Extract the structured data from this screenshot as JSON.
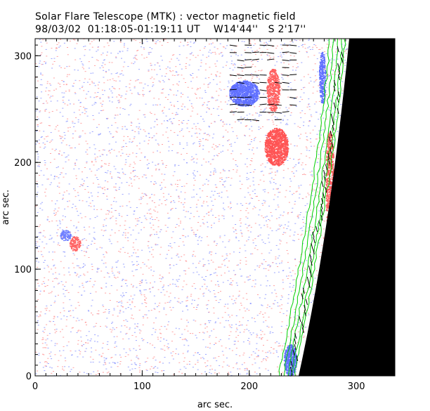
{
  "header": {
    "title": "Solar Flare Telescope (MTK) : vector magnetic field",
    "date": "98/03/02",
    "time_range": "01:18:05-01:19:11 UT",
    "position_w": "W14'44''",
    "position_s": "S 2'17''"
  },
  "chart_data": {
    "type": "heatmap",
    "title": "Solar Flare Telescope (MTK) : vector magnetic field",
    "xlabel": "arc sec.",
    "ylabel": "arc sec.",
    "xlim": [
      0,
      336
    ],
    "ylim": [
      0,
      316
    ],
    "xticks": [
      "0",
      "100",
      "200",
      "300"
    ],
    "yticks": [
      "0",
      "100",
      "200",
      "300"
    ],
    "colors": {
      "positive": "#ff6060",
      "negative": "#6070ff",
      "contour": "#00e000",
      "limb": "#000000",
      "vector": "#000000"
    },
    "features": [
      {
        "polarity": "negative",
        "x": 195,
        "y": 265
      },
      {
        "polarity": "positive",
        "x": 225,
        "y": 215
      },
      {
        "polarity": "positive",
        "x": 220,
        "y": 270
      },
      {
        "polarity": "negative",
        "x": 28,
        "y": 132
      },
      {
        "polarity": "positive",
        "x": 37,
        "y": 124
      }
    ]
  }
}
